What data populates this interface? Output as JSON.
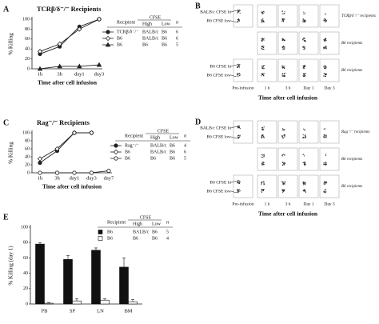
{
  "chart_data": [
    {
      "type": "line",
      "panel": "A",
      "title": "TCRβ/δ⁻/⁻ Recipients",
      "y_label": "% Killing",
      "x_label": "Time after cell infusion",
      "categories": [
        "1h",
        "3h",
        "day1",
        "day3"
      ],
      "ylim": [
        0,
        100
      ],
      "yticks": [
        0,
        20,
        40,
        60,
        80,
        100
      ],
      "legend_header": {
        "recipient": "Recipient",
        "cfse": "CFSE",
        "high": "High",
        "low": "Low",
        "n": "n"
      },
      "series": [
        {
          "name": "TCRβ/δ⁻/⁻",
          "high": "BALB/c",
          "low": "B6",
          "n": 6,
          "marker": "circle",
          "color": "#222",
          "values": [
            30,
            45,
            85,
            100
          ]
        },
        {
          "name": "B6",
          "high": "BALB/c",
          "low": "B6",
          "n": 6,
          "marker": "diamond",
          "color": "#222",
          "values": [
            35,
            50,
            80,
            100
          ]
        },
        {
          "name": "B6",
          "high": "B6",
          "low": "B6",
          "n": 5,
          "marker": "triangle",
          "color": "#222",
          "values": [
            0,
            5,
            5,
            8
          ]
        }
      ]
    },
    {
      "type": "line",
      "panel": "C",
      "title": "Rag⁻/⁻ Recipients",
      "y_label": "% Killing",
      "x_label": "Time after cell infusion",
      "categories": [
        "1h",
        "3h",
        "day1",
        "day3",
        "day7"
      ],
      "ylim": [
        0,
        100
      ],
      "yticks": [
        0,
        20,
        40,
        60,
        80,
        100
      ],
      "legend_header": {
        "recipient": "Recipient",
        "cfse": "CFSE",
        "high": "High",
        "low": "Low",
        "n": "n"
      },
      "series": [
        {
          "name": "Rag⁻/⁻",
          "high": "BALB/c",
          "low": "B6",
          "n": 4,
          "marker": "circle",
          "color": "#222",
          "values": [
            25,
            55,
            100,
            100,
            null
          ]
        },
        {
          "name": "B6",
          "high": "BALB/c",
          "low": "B6",
          "n": 6,
          "marker": "diamond",
          "color": "#222",
          "values": [
            35,
            60,
            100,
            100,
            null
          ]
        },
        {
          "name": "B6",
          "high": "B6",
          "low": "B6",
          "n": 5,
          "marker": "circle-open",
          "color": "#222",
          "values": [
            0,
            0,
            0,
            0,
            5
          ]
        }
      ]
    },
    {
      "type": "bar",
      "panel": "E",
      "y_label": "% Killing (day 1)",
      "categories": [
        "PB",
        "SP",
        "LN",
        "BM"
      ],
      "ylim": [
        0,
        100
      ],
      "yticks": [
        0,
        20,
        40,
        60,
        80,
        100
      ],
      "legend_header": {
        "recipient": "Recipient",
        "cfse": "CFSE",
        "high": "High",
        "low": "Low",
        "n": "n"
      },
      "series": [
        {
          "name": "B6",
          "high": "BALB/c",
          "low": "B6",
          "n": 5,
          "color": "#111",
          "values": [
            78,
            58,
            70,
            48
          ],
          "errors": [
            2,
            5,
            3,
            12
          ]
        },
        {
          "name": "B6",
          "high": "B6",
          "low": "B6",
          "n": 4,
          "color": "#fff",
          "values": [
            1,
            4,
            5,
            3
          ],
          "errors": [
            1,
            3,
            2,
            3
          ]
        }
      ]
    }
  ],
  "flow_panels": [
    {
      "panel": "B",
      "gate_labels": [
        "BALB/c CFSE hi",
        "B6 CFSE low",
        "B6 CFSE hi",
        "B6 CFSE low"
      ],
      "columns": [
        "Pre-infusion",
        "1 h",
        "3 h",
        "Day 1",
        "Day 3"
      ],
      "rows": [
        "TCRβ/δ⁻/⁻ recipients",
        "B6 recipients",
        "B6 recipients"
      ],
      "x_label": "Time after cell infusion"
    },
    {
      "panel": "D",
      "gate_labels": [
        "BALB/c CFSE hi",
        "B6 CFSE low",
        "B6 CFSE hi",
        "B6 CFSE low"
      ],
      "columns": [
        "Pre-infusion",
        "1 h",
        "3 h",
        "Day 1",
        "Day 3"
      ],
      "rows": [
        "Rag⁻/⁻ recipients",
        "B6 recipients",
        "B6 recipients"
      ],
      "x_label": "Time after cell infusion"
    }
  ]
}
